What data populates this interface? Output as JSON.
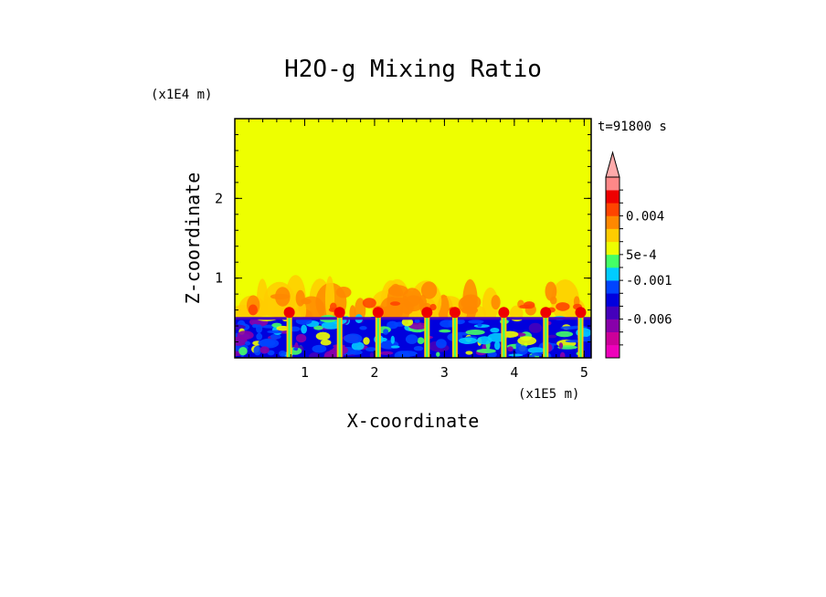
{
  "chart_data": {
    "type": "heatmap",
    "title": "H2O-g Mixing Ratio",
    "xlabel": "X-coordinate",
    "ylabel": "Z-coordinate",
    "x_scale_label": "(x1E5 m)",
    "y_scale_label": "(x1E4 m)",
    "time_label": "t=91800 s",
    "xlim": [
      0,
      5.1
    ],
    "ylim": [
      0,
      3
    ],
    "x_ticks": [
      {
        "value": 1,
        "label": "1"
      },
      {
        "value": 2,
        "label": "2"
      },
      {
        "value": 3,
        "label": "3"
      },
      {
        "value": 4,
        "label": "4"
      },
      {
        "value": 5,
        "label": "5"
      }
    ],
    "y_ticks": [
      {
        "value": 1,
        "label": "1"
      },
      {
        "value": 2,
        "label": "2"
      }
    ],
    "background_color": "#eeff00",
    "colorbar": {
      "levels": [
        {
          "color": "#ee00bb"
        },
        {
          "color": "#cc0099"
        },
        {
          "color": "#8800aa"
        },
        {
          "color": "#4400bb"
        },
        {
          "color": "#0000dd"
        },
        {
          "color": "#0044ff"
        },
        {
          "color": "#00ccff"
        },
        {
          "color": "#44ff66"
        },
        {
          "color": "#eeff00"
        },
        {
          "color": "#ffcc00"
        },
        {
          "color": "#ff8800"
        },
        {
          "color": "#ff4400"
        },
        {
          "color": "#ee0000"
        },
        {
          "color": "#ff8888"
        }
      ],
      "labels": [
        {
          "text": "0.004",
          "value": 0.004
        },
        {
          "text": "5e-4",
          "value": 0.0005
        },
        {
          "text": "-0.001",
          "value": -0.001
        },
        {
          "text": "-0.006",
          "value": -0.006
        }
      ],
      "top_arrow_color": "#ffaaaa"
    },
    "updraft_x": [
      0.78,
      1.5,
      2.05,
      2.75,
      3.15,
      3.85,
      4.45,
      4.95
    ]
  }
}
